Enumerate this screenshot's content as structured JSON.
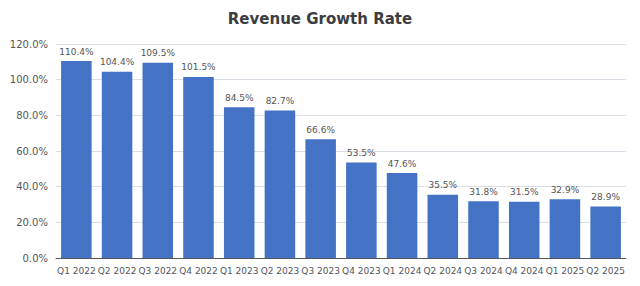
{
  "chart_data": {
    "type": "bar",
    "title": "Revenue Growth Rate",
    "categories": [
      "Q1 2022",
      "Q2 2022",
      "Q3 2022",
      "Q4 2022",
      "Q1 2023",
      "Q2 2023",
      "Q3 2023",
      "Q4 2023",
      "Q1 2024",
      "Q2 2024",
      "Q3 2024",
      "Q4 2024",
      "Q1 2025",
      "Q2 2025"
    ],
    "values": [
      110.4,
      104.4,
      109.5,
      101.5,
      84.5,
      82.7,
      66.6,
      53.5,
      47.6,
      35.5,
      31.8,
      31.5,
      32.9,
      28.9
    ],
    "value_labels": [
      "110.4%",
      "104.4%",
      "109.5%",
      "101.5%",
      "84.5%",
      "82.7%",
      "66.6%",
      "53.5%",
      "47.6%",
      "35.5%",
      "31.8%",
      "31.5%",
      "32.9%",
      "28.9%"
    ],
    "data_labels": true,
    "color": "#4472C4",
    "ylim": [
      0,
      120
    ],
    "yticks": [
      {
        "value": 0,
        "label": "0.0%"
      },
      {
        "value": 20,
        "label": "20.0%"
      },
      {
        "value": 40,
        "label": "40.0%"
      },
      {
        "value": 60,
        "label": "60.0%"
      },
      {
        "value": 80,
        "label": "80.0%"
      },
      {
        "value": 100,
        "label": "100.0%"
      },
      {
        "value": 120,
        "label": "120.0%"
      }
    ],
    "grid": true
  }
}
